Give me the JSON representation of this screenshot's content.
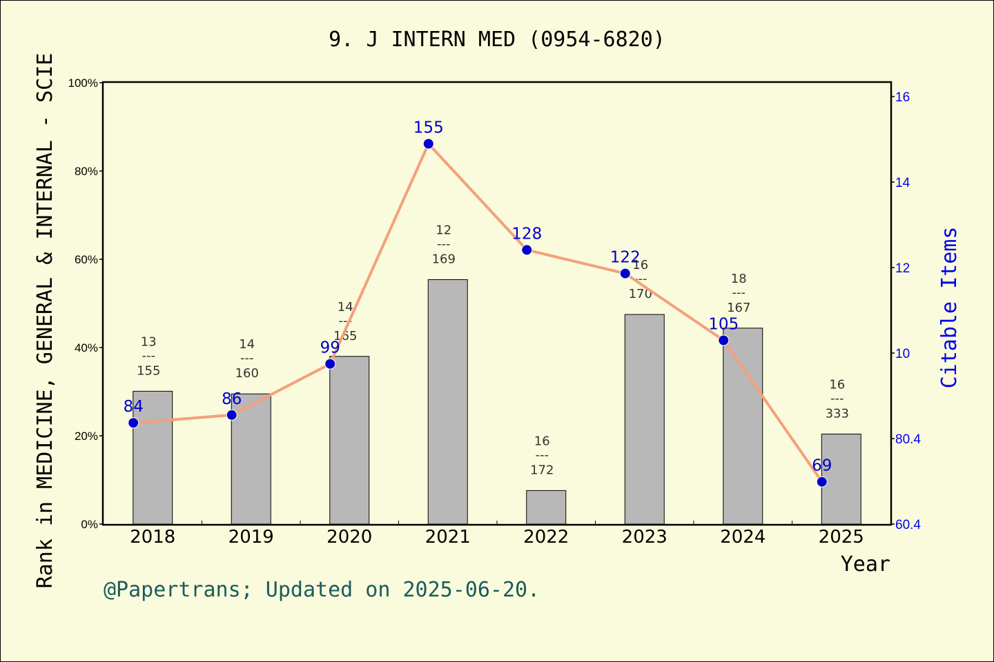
{
  "chart_data": {
    "type": "bar",
    "title": "9. J INTERN MED (0954-6820)",
    "xlabel": "Year",
    "ylabel": "Rank in MEDICINE, GENERAL & INTERNAL - SCIE",
    "y2label": "Citable Items",
    "categories": [
      "2018",
      "2019",
      "2020",
      "2021",
      "2022",
      "2023",
      "2024",
      "2025"
    ],
    "y_ticks": [
      "0%",
      "20%",
      "40%",
      "60%",
      "80%",
      "100%"
    ],
    "y2_ticks": [
      "60.4",
      "80.4",
      "10",
      "12",
      "14",
      "16"
    ],
    "ylim": [
      0,
      100
    ],
    "series": [
      {
        "kind": "bar",
        "values": [
          30.1,
          29.5,
          38.0,
          55.4,
          7.6,
          47.5,
          44.4,
          20.4
        ],
        "labels": [
          {
            "top": "13",
            "sep": "---",
            "bottom": "155"
          },
          {
            "top": "14",
            "sep": "---",
            "bottom": "160"
          },
          {
            "top": "14",
            "sep": "---",
            "bottom": "165"
          },
          {
            "top": "12",
            "sep": "---",
            "bottom": "169"
          },
          {
            "top": "16",
            "sep": "---",
            "bottom": "172"
          },
          {
            "top": "16",
            "sep": "---",
            "bottom": "170"
          },
          {
            "top": "18",
            "sep": "---",
            "bottom": "167"
          },
          {
            "top": "16",
            "sep": "---",
            "bottom": "333"
          }
        ],
        "color": "#b8b8b8"
      },
      {
        "kind": "line",
        "axis": "right",
        "values": [
          84,
          86,
          99,
          155,
          128,
          122,
          105,
          69
        ],
        "labels": [
          "84",
          "86",
          "99",
          "155",
          "128",
          "122",
          "105",
          "69"
        ],
        "line_color": "#f4a07c",
        "marker_color": "#0000cc"
      }
    ],
    "grid": false,
    "footer": "@Papertrans; Updated on 2025-06-20."
  }
}
